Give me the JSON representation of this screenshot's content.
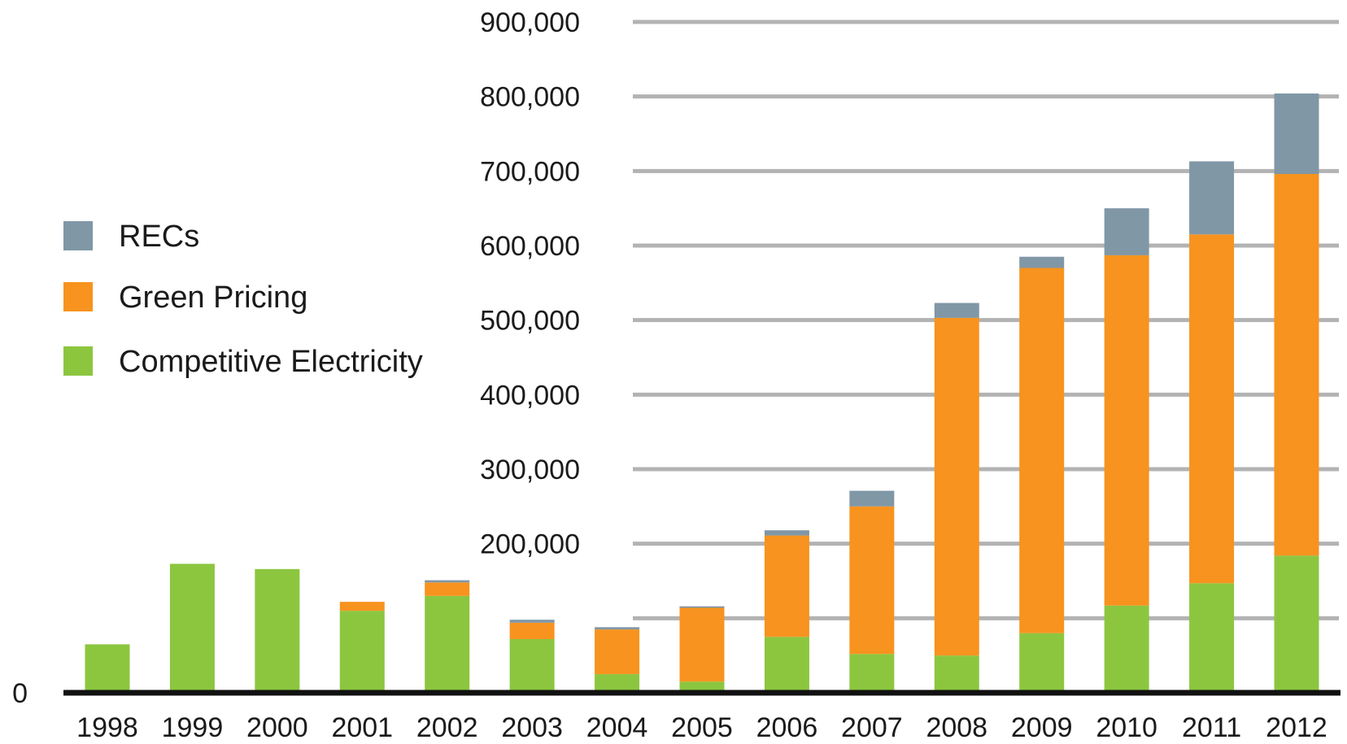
{
  "chart_data": {
    "type": "bar",
    "stacked": true,
    "title": "",
    "xlabel": "",
    "ylabel": "",
    "categories": [
      "1998",
      "1999",
      "2000",
      "2001",
      "2002",
      "2003",
      "2004",
      "2005",
      "2006",
      "2007",
      "2008",
      "2009",
      "2010",
      "2011",
      "2012"
    ],
    "series": [
      {
        "name": "Competitive Electricity",
        "color": "#8cc63f",
        "values": [
          65000,
          173000,
          166000,
          110000,
          130000,
          72000,
          25000,
          15000,
          75000,
          52000,
          50000,
          80000,
          117000,
          147000,
          184000
        ]
      },
      {
        "name": "Green Pricing",
        "color": "#f7931e",
        "values": [
          0,
          0,
          0,
          12000,
          18000,
          22000,
          60000,
          99000,
          136000,
          198000,
          453000,
          490000,
          470000,
          468000,
          512000
        ]
      },
      {
        "name": "RECs",
        "color": "#8097a6",
        "values": [
          0,
          0,
          0,
          0,
          3000,
          4000,
          3000,
          2000,
          7000,
          21000,
          20000,
          15000,
          63000,
          98000,
          108000
        ]
      }
    ],
    "ylim": [
      0,
      900000
    ],
    "yticks": [
      0,
      100000,
      200000,
      300000,
      400000,
      500000,
      600000,
      700000,
      800000,
      900000
    ],
    "ytick_labels": [
      "0",
      "",
      "200,000",
      "300,000",
      "400,000",
      "500,000",
      "600,000",
      "700,000",
      "800,000",
      "900,000"
    ],
    "grid": true,
    "legend_placement": "left",
    "legend_order": [
      "RECs",
      "Green Pricing",
      "Competitive Electricity"
    ]
  }
}
